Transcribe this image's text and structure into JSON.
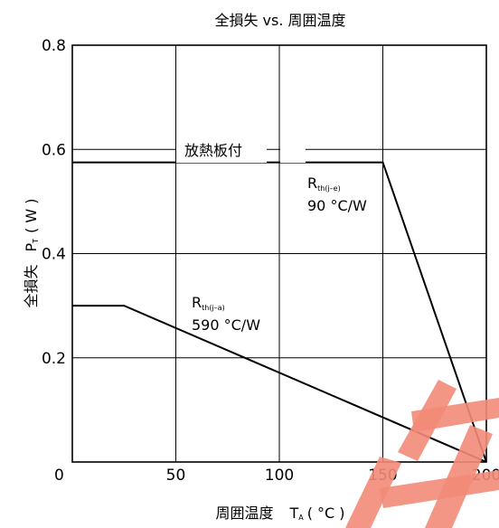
{
  "chart_data": {
    "type": "line",
    "title": "全損失 vs. 周囲温度",
    "xlabel_main": "周囲温度",
    "xlabel_symbol": "T",
    "xlabel_sub": "A",
    "xlabel_unit": "( °C )",
    "ylabel_main": "全損失",
    "ylabel_symbol": "P",
    "ylabel_sub": "T",
    "ylabel_unit": "( W )",
    "xlim": [
      0,
      200
    ],
    "ylim": [
      0,
      0.8
    ],
    "x_ticks": [
      0,
      50,
      100,
      150,
      200
    ],
    "x_tick_labels": [
      "0",
      "50",
      "100",
      "150",
      "200"
    ],
    "y_ticks": [
      0.2,
      0.4,
      0.6,
      0.8
    ],
    "y_tick_labels": [
      "0.2",
      "0.4",
      "0.6",
      "0.8"
    ],
    "grid": true,
    "series": [
      {
        "x": [
          0,
          150,
          200
        ],
        "y": [
          0.575,
          0.575,
          0
        ]
      },
      {
        "x": [
          0,
          25,
          200
        ],
        "y": [
          0.3,
          0.3,
          0
        ]
      }
    ],
    "annotations": {
      "heatsink": "放熱板付",
      "rth_je_main": "R",
      "rth_je_sub": "th(j–e)",
      "rth_je_value": "90 °C/W",
      "rth_ja_main": "R",
      "rth_ja_sub": "th(j–a)",
      "rth_ja_value": "590 °C/W"
    }
  }
}
